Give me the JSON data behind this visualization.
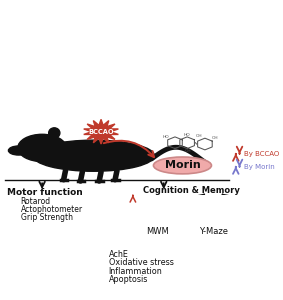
{
  "bg_color": "#ffffff",
  "red": "#c0392b",
  "blue_purple": "#7777cc",
  "black": "#111111",
  "gray_struct": "#555555",
  "brain_fill": "#e08080",
  "brain_edge": "#b05050",
  "bccao_label": "BCCAO",
  "morin_label": "Morin",
  "by_bccao": "By BCCAO",
  "by_morin": "By Morin",
  "motor_title": "Motor function",
  "motor_items": [
    "Rotarod",
    "Actophotometer",
    "Grip Strength"
  ],
  "cognition_title": "Cognition & Memory",
  "mwm_label": "MWM",
  "ymaze_label": "Y-Maze",
  "brain_items": [
    "AchE",
    "Oxidative stress",
    "Inflammation",
    "Apoptosis"
  ],
  "rat_color": "#111111",
  "morin_fill": "#f0aaaa",
  "morin_edge": "#cc8888"
}
